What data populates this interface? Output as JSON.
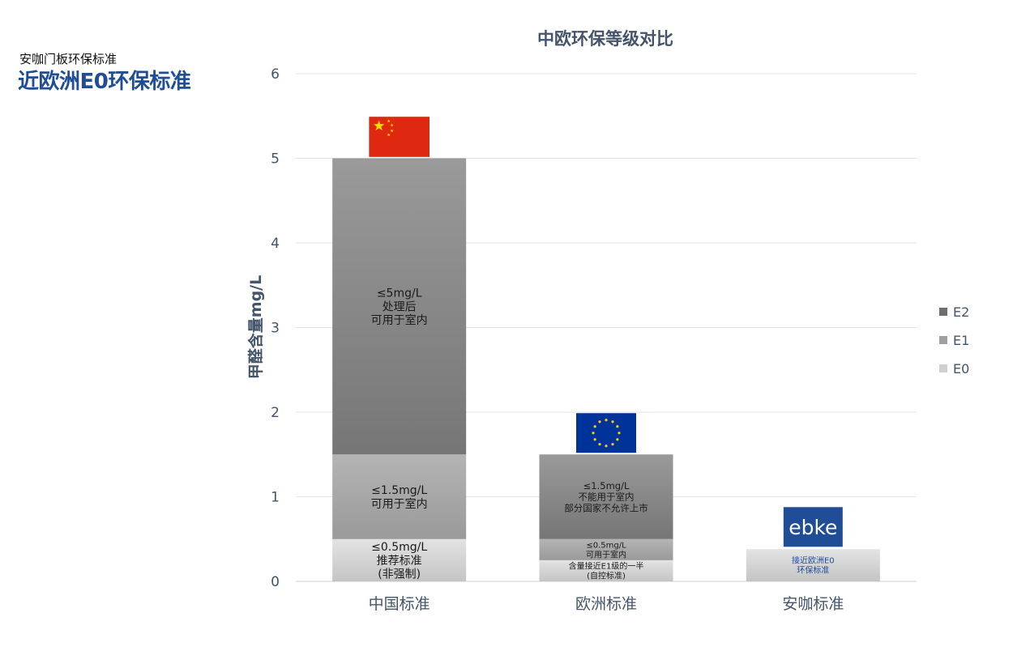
{
  "header": {
    "subtitle": "安咖门板环保标准",
    "title": "近欧洲E0环保标准"
  },
  "chart_data": {
    "type": "bar",
    "stacked": true,
    "title": "中欧环保等级对比",
    "xlabel": "",
    "ylabel": "甲醛含量mg/L",
    "ylim": [
      0,
      6
    ],
    "yticks": [
      0,
      1,
      2,
      3,
      4,
      5,
      6
    ],
    "grid": true,
    "legend_position": "right",
    "categories": [
      "中国标准",
      "欧洲标准",
      "安咖标准"
    ],
    "series": [
      {
        "name": "E0",
        "values": [
          0.5,
          0.25,
          0.38
        ],
        "color": "#cfcfcf"
      },
      {
        "name": "E1",
        "values": [
          1.0,
          0.25,
          0
        ],
        "color": "#a6a6a6"
      },
      {
        "name": "E2",
        "values": [
          3.5,
          1.0,
          0
        ],
        "color": "#8a8a8a"
      }
    ],
    "segment_labels": [
      [
        [
          "≤0.5mg/L",
          "推荐标准",
          "(非强制)"
        ],
        [
          "≤1.5mg/L",
          "可用于室内"
        ],
        [
          "≤5mg/L",
          "处理后",
          "可用于室内"
        ]
      ],
      [
        [
          "含量接近E1级的一半",
          "(自控标准)"
        ],
        [
          "≤0.5mg/L",
          "可用于室内"
        ],
        [
          "≤1.5mg/L",
          "不能用于室内",
          "部分国家不允许上市"
        ]
      ],
      [
        [
          "接近欧洲E0",
          "环保标准"
        ]
      ]
    ],
    "legend_order": [
      "E2",
      "E1",
      "E0"
    ],
    "badges": [
      {
        "category": "中国标准",
        "icon": "china-flag-icon"
      },
      {
        "category": "欧洲标准",
        "icon": "eu-flag-icon"
      },
      {
        "category": "安咖标准",
        "icon": "ebke-logo-icon",
        "text": "ebke"
      }
    ]
  }
}
